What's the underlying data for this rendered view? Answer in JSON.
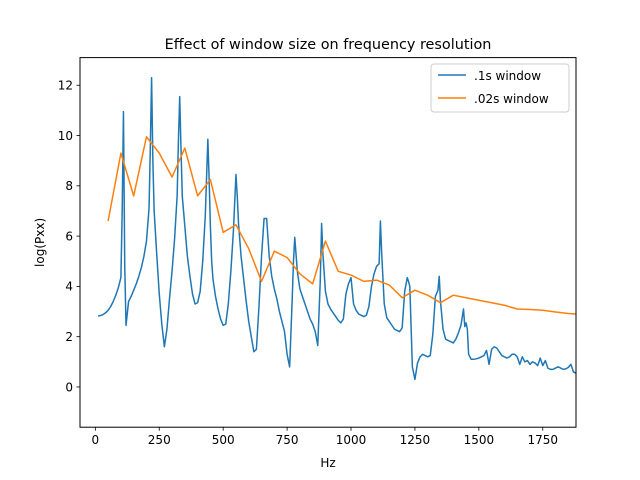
{
  "chart_data": {
    "type": "line",
    "title": "Effect of window size on frequency resolution",
    "xlabel": "Hz",
    "ylabel": "log(Pxx)",
    "xlim": [
      -60,
      1880
    ],
    "ylim": [
      -1.6,
      13.1
    ],
    "xticks": [
      0,
      250,
      500,
      750,
      1000,
      1250,
      1500,
      1750
    ],
    "yticks": [
      0,
      2,
      4,
      6,
      8,
      10,
      12
    ],
    "grid": false,
    "legend_position": "top-right",
    "series": [
      {
        "name": ".1s window",
        "color": "#1f77b4",
        "x": [
          10,
          20,
          30,
          40,
          50,
          60,
          70,
          80,
          90,
          100,
          105,
          110,
          115,
          120,
          130,
          140,
          150,
          160,
          170,
          180,
          190,
          200,
          210,
          215,
          220,
          225,
          230,
          240,
          250,
          260,
          270,
          280,
          290,
          300,
          310,
          320,
          325,
          330,
          335,
          340,
          350,
          360,
          370,
          380,
          390,
          400,
          410,
          420,
          430,
          440,
          445,
          450,
          455,
          460,
          470,
          480,
          490,
          500,
          510,
          520,
          530,
          540,
          550,
          555,
          560,
          570,
          580,
          590,
          600,
          610,
          620,
          630,
          640,
          650,
          660,
          665,
          670,
          680,
          690,
          700,
          710,
          720,
          730,
          740,
          750,
          760,
          770,
          775,
          780,
          790,
          800,
          810,
          820,
          830,
          840,
          850,
          860,
          870,
          880,
          885,
          890,
          900,
          910,
          920,
          930,
          940,
          950,
          960,
          970,
          980,
          990,
          1000,
          1010,
          1020,
          1030,
          1040,
          1050,
          1060,
          1070,
          1080,
          1090,
          1100,
          1110,
          1115,
          1120,
          1130,
          1140,
          1150,
          1160,
          1170,
          1180,
          1190,
          1200,
          1210,
          1220,
          1225,
          1230,
          1240,
          1250,
          1260,
          1270,
          1280,
          1290,
          1300,
          1310,
          1320,
          1330,
          1340,
          1345,
          1350,
          1360,
          1370,
          1380,
          1390,
          1400,
          1410,
          1420,
          1430,
          1440,
          1445,
          1450,
          1455,
          1460,
          1470,
          1480,
          1490,
          1500,
          1510,
          1520,
          1530,
          1540,
          1550,
          1560,
          1570,
          1580,
          1590,
          1600,
          1610,
          1620,
          1630,
          1640,
          1650,
          1660,
          1670,
          1680,
          1690,
          1700,
          1710,
          1720,
          1730,
          1740,
          1750,
          1760,
          1770,
          1780,
          1790,
          1800,
          1810,
          1820,
          1830,
          1840,
          1850,
          1860,
          1870,
          1880
        ],
        "y": [
          2.82,
          2.84,
          2.88,
          2.95,
          3.05,
          3.2,
          3.4,
          3.65,
          3.95,
          4.35,
          7.0,
          10.95,
          4.8,
          2.45,
          3.4,
          3.6,
          3.85,
          4.1,
          4.4,
          4.75,
          5.2,
          5.8,
          7.1,
          9.5,
          12.3,
          9.0,
          7.0,
          5.3,
          3.7,
          2.5,
          1.6,
          2.3,
          3.5,
          4.6,
          5.9,
          7.6,
          9.8,
          11.55,
          9.5,
          7.6,
          6.4,
          5.2,
          4.4,
          3.7,
          3.3,
          3.35,
          3.8,
          5.0,
          6.8,
          9.85,
          8.3,
          6.4,
          5.0,
          4.3,
          3.6,
          3.1,
          2.7,
          2.45,
          2.5,
          3.3,
          4.6,
          6.2,
          8.45,
          7.6,
          6.5,
          5.2,
          4.3,
          3.4,
          2.6,
          2.0,
          1.4,
          1.5,
          3.2,
          5.2,
          6.7,
          6.7,
          6.7,
          5.2,
          4.4,
          3.9,
          3.5,
          3.0,
          2.6,
          2.2,
          1.3,
          0.8,
          3.5,
          5.0,
          5.95,
          4.6,
          3.9,
          3.6,
          3.3,
          3.0,
          2.7,
          2.5,
          2.2,
          1.65,
          4.3,
          6.5,
          5.3,
          3.8,
          3.3,
          3.1,
          2.95,
          2.8,
          2.65,
          2.55,
          2.7,
          3.7,
          4.1,
          4.35,
          3.3,
          3.05,
          2.9,
          2.85,
          2.8,
          2.85,
          3.2,
          4.0,
          4.5,
          4.8,
          4.9,
          6.6,
          5.3,
          3.3,
          2.75,
          2.6,
          2.45,
          2.3,
          2.25,
          2.2,
          2.35,
          3.8,
          4.35,
          4.2,
          4.0,
          0.8,
          0.3,
          0.95,
          1.2,
          1.3,
          1.25,
          1.2,
          1.25,
          2.1,
          3.6,
          3.85,
          4.4,
          3.4,
          2.3,
          1.9,
          1.85,
          1.8,
          1.75,
          1.9,
          2.15,
          2.45,
          3.1,
          2.4,
          2.55,
          2.3,
          1.3,
          1.1,
          1.1,
          1.12,
          1.15,
          1.2,
          1.25,
          1.45,
          0.9,
          1.5,
          1.6,
          1.55,
          1.4,
          1.25,
          1.2,
          1.15,
          1.2,
          1.3,
          1.3,
          1.2,
          0.9,
          1.2,
          1.0,
          1.05,
          0.9,
          1.0,
          0.95,
          0.85,
          1.15,
          0.85,
          1.05,
          0.75,
          0.7,
          0.7,
          0.75,
          0.8,
          0.75,
          0.7,
          0.72,
          0.78,
          0.9,
          0.6,
          0.55
        ]
      },
      {
        "name": ".02s window",
        "color": "#ff7f0e",
        "x": [
          50,
          100,
          150,
          200,
          250,
          300,
          350,
          400,
          450,
          500,
          550,
          600,
          650,
          700,
          750,
          800,
          850,
          900,
          950,
          1000,
          1050,
          1100,
          1150,
          1200,
          1250,
          1300,
          1350,
          1400,
          1450,
          1500,
          1550,
          1600,
          1650,
          1700,
          1750,
          1800,
          1850,
          1880
        ],
        "y": [
          6.6,
          9.3,
          7.6,
          9.95,
          9.3,
          8.35,
          9.5,
          7.6,
          8.25,
          6.15,
          6.45,
          5.5,
          4.2,
          5.4,
          5.15,
          4.5,
          4.1,
          5.8,
          4.6,
          4.45,
          4.2,
          4.25,
          4.05,
          3.55,
          3.85,
          3.65,
          3.35,
          3.65,
          3.55,
          3.45,
          3.35,
          3.25,
          3.1,
          3.08,
          3.05,
          2.98,
          2.92,
          2.9
        ]
      }
    ]
  }
}
